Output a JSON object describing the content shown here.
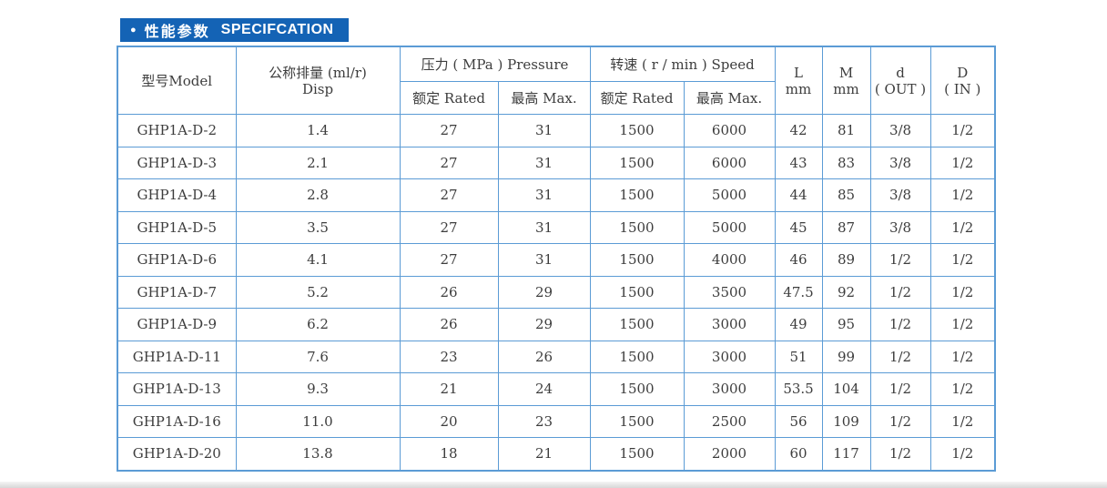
{
  "title": {
    "bullet": "●",
    "cn": "性能参数",
    "en": "SPECIFCATION"
  },
  "table": {
    "header": {
      "model": "型号Model",
      "disp_line1": "公称排量 (ml/r)",
      "disp_line2": "Disp",
      "pressure_group": "压力 ( MPa ) Pressure",
      "speed_group": "转速 ( r / min ) Speed",
      "rated": "额定 Rated",
      "max": "最高 Max.",
      "l_line1": "L",
      "l_line2": "mm",
      "m_line1": "M",
      "m_line2": "mm",
      "d_line1": "d",
      "d_line2": "( OUT )",
      "D_line1": "D",
      "D_line2": "( IN )"
    },
    "column_keys": [
      "model",
      "displacement",
      "pressure-rated",
      "pressure-max",
      "speed-rated",
      "speed-max",
      "l-mm",
      "m-mm",
      "d-out",
      "d-in"
    ],
    "rows": [
      [
        "GHP1A-D-2",
        "1.4",
        "27",
        "31",
        "1500",
        "6000",
        "42",
        "81",
        "3/8",
        "1/2"
      ],
      [
        "GHP1A-D-3",
        "2.1",
        "27",
        "31",
        "1500",
        "6000",
        "43",
        "83",
        "3/8",
        "1/2"
      ],
      [
        "GHP1A-D-4",
        "2.8",
        "27",
        "31",
        "1500",
        "5000",
        "44",
        "85",
        "3/8",
        "1/2"
      ],
      [
        "GHP1A-D-5",
        "3.5",
        "27",
        "31",
        "1500",
        "5000",
        "45",
        "87",
        "3/8",
        "1/2"
      ],
      [
        "GHP1A-D-6",
        "4.1",
        "27",
        "31",
        "1500",
        "4000",
        "46",
        "89",
        "1/2",
        "1/2"
      ],
      [
        "GHP1A-D-7",
        "5.2",
        "26",
        "29",
        "1500",
        "3500",
        "47.5",
        "92",
        "1/2",
        "1/2"
      ],
      [
        "GHP1A-D-9",
        "6.2",
        "26",
        "29",
        "1500",
        "3000",
        "49",
        "95",
        "1/2",
        "1/2"
      ],
      [
        "GHP1A-D-11",
        "7.6",
        "23",
        "26",
        "1500",
        "3000",
        "51",
        "99",
        "1/2",
        "1/2"
      ],
      [
        "GHP1A-D-13",
        "9.3",
        "21",
        "24",
        "1500",
        "3000",
        "53.5",
        "104",
        "1/2",
        "1/2"
      ],
      [
        "GHP1A-D-16",
        "11.0",
        "20",
        "23",
        "1500",
        "2500",
        "56",
        "109",
        "1/2",
        "1/2"
      ],
      [
        "GHP1A-D-20",
        "13.8",
        "18",
        "21",
        "1500",
        "2000",
        "60",
        "117",
        "1/2",
        "1/2"
      ]
    ],
    "colors": {
      "title_bg": "#1463b5",
      "title_text": "#ffffff",
      "border": "#5b9bd5",
      "text": "#3d3d3d"
    }
  }
}
